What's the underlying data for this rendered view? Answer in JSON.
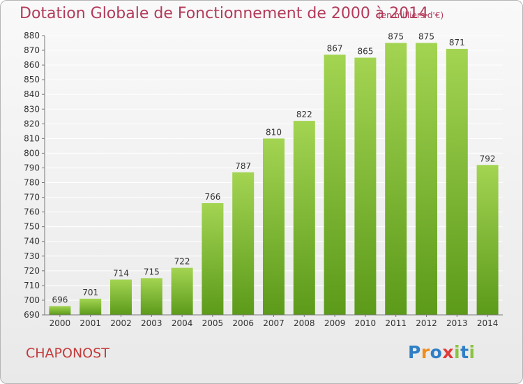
{
  "title": "Dotation Globale de Fonctionnement de 2000 à 2014",
  "unit": "(en milliers d'€)",
  "commune": "CHAPONOST",
  "logo": {
    "letters": [
      "P",
      "r",
      "o",
      "x",
      "i",
      "t",
      "i"
    ],
    "colors": [
      "#2f7fc6",
      "#f08c1c",
      "#2f7fc6",
      "#e23a3a",
      "#8ac440",
      "#2f7fc6",
      "#8ac440"
    ]
  },
  "chart_data": {
    "type": "bar",
    "categories": [
      "2000",
      "2001",
      "2002",
      "2003",
      "2004",
      "2005",
      "2006",
      "2007",
      "2008",
      "2009",
      "2010",
      "2011",
      "2012",
      "2013",
      "2014"
    ],
    "values": [
      696,
      701,
      714,
      715,
      722,
      766,
      787,
      810,
      822,
      867,
      865,
      875,
      875,
      871,
      792
    ],
    "data_labels": [
      "696",
      "701",
      "714",
      "715",
      "722",
      "766",
      "787",
      "810",
      "822",
      "867",
      "865",
      "875",
      "875",
      "871",
      "792"
    ],
    "ylim": [
      690,
      880
    ],
    "yticks": [
      "690",
      "700",
      "710",
      "720",
      "730",
      "740",
      "750",
      "760",
      "770",
      "780",
      "790",
      "800",
      "810",
      "820",
      "830",
      "840",
      "850",
      "860",
      "870",
      "880"
    ],
    "grid": true,
    "bar_color": "#7cbf3a"
  }
}
